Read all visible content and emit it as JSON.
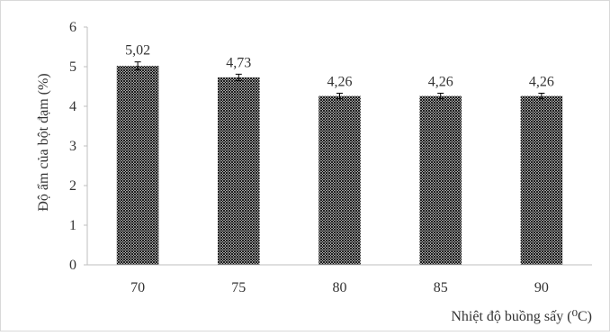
{
  "chart_data": {
    "type": "bar",
    "title": "",
    "xlabel": "Nhiệt độ buồng sấy (⁰C)",
    "ylabel": "Độ ẩm của bột đạm (%)",
    "categories": [
      "70",
      "75",
      "80",
      "85",
      "90"
    ],
    "values": [
      5.02,
      4.73,
      4.26,
      4.26,
      4.26
    ],
    "value_labels": [
      "5,02",
      "4,73",
      "4,26",
      "4,26",
      "4,26"
    ],
    "error": [
      0.1,
      0.08,
      0.07,
      0.07,
      0.07
    ],
    "ylim": [
      0,
      6
    ],
    "yticks": [
      "0",
      "1",
      "2",
      "3",
      "4",
      "5",
      "6"
    ],
    "grid": false,
    "bar_fill": "diagonal-crosshatch",
    "colors": {
      "hatch": "#000000",
      "axis": "#bfbfbf",
      "text": "#333333"
    }
  }
}
